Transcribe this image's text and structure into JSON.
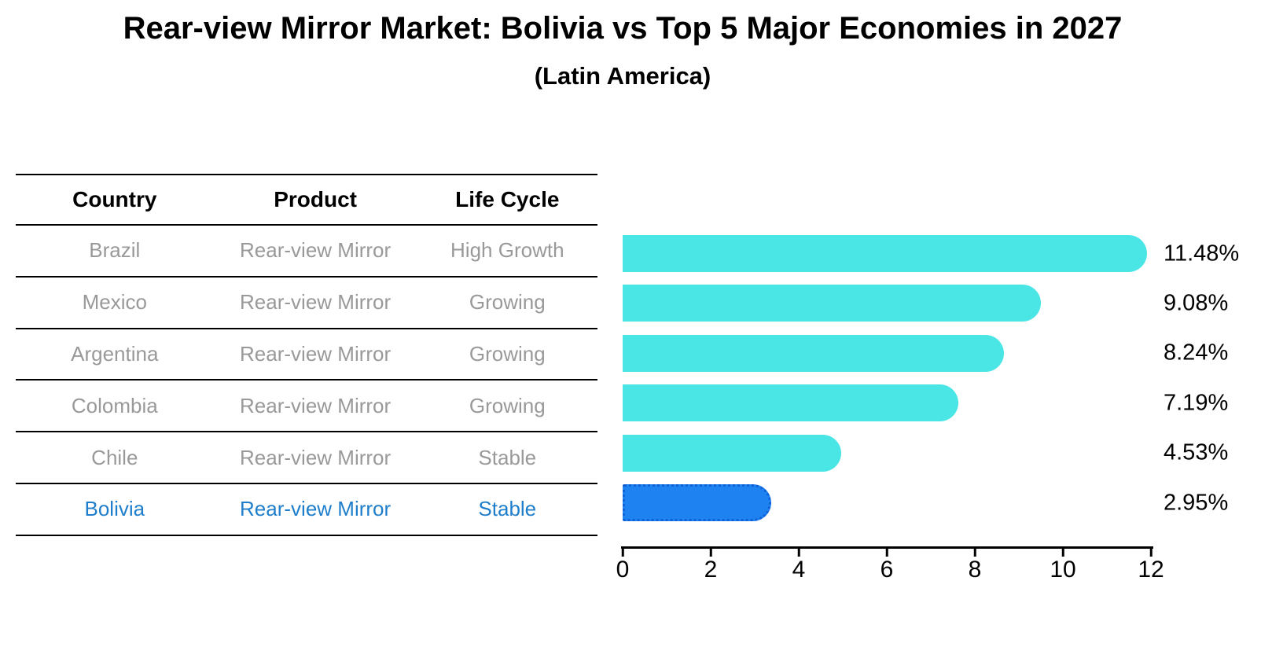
{
  "header": {
    "title": "Rear-view Mirror Market: Bolivia vs Top 5 Major Economies in 2027",
    "subtitle": "(Latin America)"
  },
  "table": {
    "headers": [
      "Country",
      "Product",
      "Life Cycle"
    ],
    "rows": [
      {
        "country": "Brazil",
        "product": "Rear-view Mirror",
        "life_cycle": "High Growth",
        "highlighted": false
      },
      {
        "country": "Mexico",
        "product": "Rear-view Mirror",
        "life_cycle": "Growing",
        "highlighted": false
      },
      {
        "country": "Argentina",
        "product": "Rear-view Mirror",
        "life_cycle": "Growing",
        "highlighted": false
      },
      {
        "country": "Colombia",
        "product": "Rear-view Mirror",
        "life_cycle": "Growing",
        "highlighted": false
      },
      {
        "country": "Chile",
        "product": "Rear-view Mirror",
        "life_cycle": "Stable",
        "highlighted": false
      },
      {
        "country": "Bolivia",
        "product": "Rear-view Mirror",
        "life_cycle": "Stable",
        "highlighted": true
      }
    ]
  },
  "chart_data": {
    "type": "bar",
    "orientation": "horizontal",
    "title": "Rear-view Mirror Market: Bolivia vs Top 5 Major Economies in 2027 (Latin America)",
    "categories": [
      "Brazil",
      "Mexico",
      "Argentina",
      "Colombia",
      "Chile",
      "Bolivia"
    ],
    "values": [
      11.48,
      9.08,
      8.24,
      7.19,
      4.53,
      2.95
    ],
    "value_labels": [
      "11.48%",
      "9.08%",
      "8.24%",
      "7.19%",
      "4.53%",
      "2.95%"
    ],
    "highlight_index": 5,
    "xlim": [
      0,
      12
    ],
    "xticks": [
      0,
      2,
      4,
      6,
      8,
      10,
      12
    ],
    "grid": false,
    "legend": false
  },
  "colors": {
    "bar_default": "#4AE6E6",
    "bar_highlight": "#1E82F0",
    "bar_highlight_border": "#1060D8",
    "table_row_text": "#999999",
    "table_highlight_text": "#1F7ECB",
    "axis_and_text": "#000000"
  }
}
